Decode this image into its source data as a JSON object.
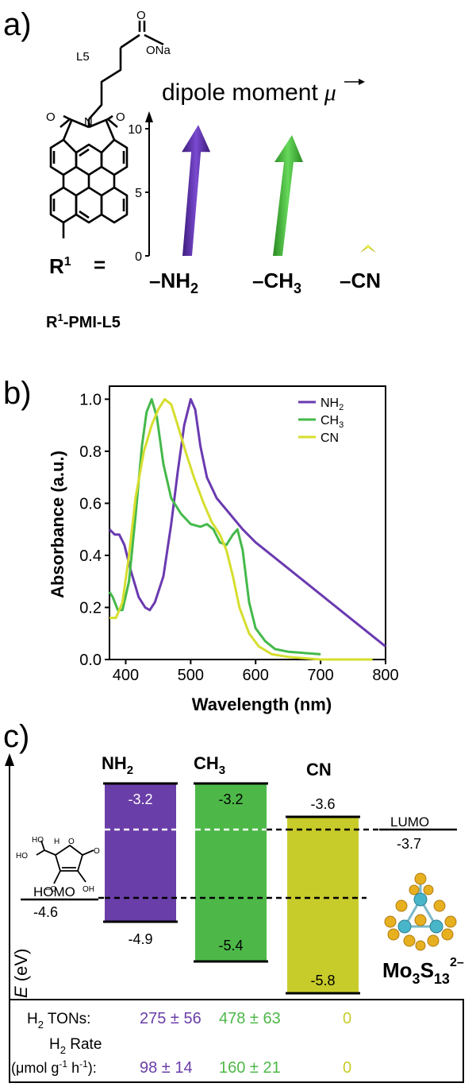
{
  "panel_a": {
    "label": "a)",
    "dipole_title": "dipole moment",
    "dipole_symbol": "μ",
    "linker_label": "L5",
    "carboxylate_label": "ONa",
    "oxygen_label": "O",
    "nitrogen_label": "N",
    "r_label": "R",
    "r_superscript": "1",
    "equals": "=",
    "molecule_name_pre": "R",
    "molecule_name_sup": "1",
    "molecule_name_post": "-PMI-L5",
    "yticks": [
      "0",
      "5",
      "10"
    ],
    "ylim": [
      0,
      11
    ],
    "colors": {
      "NH2": "#6030a8",
      "CH3": "#3fb83a",
      "CN": "#d8dc28"
    },
    "chart_data": {
      "type": "bar",
      "categories": [
        "–NH2",
        "–CH3",
        "–CN"
      ],
      "values": [
        10.3,
        9.5,
        0.9
      ],
      "ylim": [
        0,
        11
      ]
    }
  },
  "panel_b": {
    "label": "b)",
    "xlabel": "Wavelength (nm)",
    "ylabel": "Absorbance (a.u.)",
    "legend": [
      "NH2",
      "CH3",
      "CN"
    ],
    "chart_data": {
      "type": "line",
      "xlim": [
        375,
        800
      ],
      "ylim": [
        0,
        1.05
      ],
      "xticks": [
        400,
        500,
        600,
        700,
        800
      ],
      "yticks": [
        "0.0",
        "0.2",
        "0.4",
        "0.6",
        "0.8",
        "1.0"
      ],
      "legend_position": "top-right",
      "series": [
        {
          "name": "NH2",
          "color": "#6a3ab0",
          "points": [
            [
              375,
              0.5
            ],
            [
              383,
              0.48
            ],
            [
              390,
              0.48
            ],
            [
              398,
              0.44
            ],
            [
              408,
              0.34
            ],
            [
              420,
              0.24
            ],
            [
              430,
              0.2
            ],
            [
              437,
              0.19
            ],
            [
              445,
              0.22
            ],
            [
              458,
              0.32
            ],
            [
              470,
              0.52
            ],
            [
              480,
              0.72
            ],
            [
              490,
              0.9
            ],
            [
              500,
              1.0
            ],
            [
              507,
              0.96
            ],
            [
              515,
              0.82
            ],
            [
              525,
              0.7
            ],
            [
              540,
              0.62
            ],
            [
              560,
              0.56
            ],
            [
              580,
              0.5
            ],
            [
              600,
              0.45
            ],
            [
              650,
              0.35
            ],
            [
              700,
              0.25
            ],
            [
              750,
              0.15
            ],
            [
              800,
              0.05
            ]
          ]
        },
        {
          "name": "CH3",
          "color": "#44b94a",
          "points": [
            [
              375,
              0.26
            ],
            [
              380,
              0.24
            ],
            [
              388,
              0.19
            ],
            [
              395,
              0.19
            ],
            [
              405,
              0.3
            ],
            [
              415,
              0.55
            ],
            [
              425,
              0.82
            ],
            [
              432,
              0.95
            ],
            [
              440,
              1.0
            ],
            [
              448,
              0.93
            ],
            [
              458,
              0.75
            ],
            [
              470,
              0.62
            ],
            [
              485,
              0.56
            ],
            [
              500,
              0.52
            ],
            [
              515,
              0.51
            ],
            [
              525,
              0.52
            ],
            [
              535,
              0.5
            ],
            [
              545,
              0.45
            ],
            [
              555,
              0.44
            ],
            [
              565,
              0.48
            ],
            [
              572,
              0.5
            ],
            [
              580,
              0.42
            ],
            [
              590,
              0.22
            ],
            [
              600,
              0.12
            ],
            [
              615,
              0.07
            ],
            [
              630,
              0.04
            ],
            [
              650,
              0.03
            ],
            [
              700,
              0.02
            ]
          ]
        },
        {
          "name": "CN",
          "color": "#d6de2e",
          "points": [
            [
              375,
              0.16
            ],
            [
              385,
              0.16
            ],
            [
              395,
              0.22
            ],
            [
              405,
              0.4
            ],
            [
              415,
              0.62
            ],
            [
              428,
              0.8
            ],
            [
              440,
              0.9
            ],
            [
              450,
              0.96
            ],
            [
              460,
              1.0
            ],
            [
              470,
              0.98
            ],
            [
              480,
              0.9
            ],
            [
              492,
              0.8
            ],
            [
              505,
              0.7
            ],
            [
              520,
              0.6
            ],
            [
              532,
              0.53
            ],
            [
              545,
              0.48
            ],
            [
              555,
              0.42
            ],
            [
              565,
              0.32
            ],
            [
              575,
              0.2
            ],
            [
              590,
              0.1
            ],
            [
              605,
              0.05
            ],
            [
              625,
              0.02
            ],
            [
              650,
              0.01
            ],
            [
              700,
              0.0
            ],
            [
              780,
              0.0
            ]
          ]
        }
      ]
    }
  },
  "panel_c": {
    "label": "c)",
    "yaxis_italic": "E",
    "yaxis_unit": " (eV)",
    "columns": [
      {
        "name_main": "NH",
        "name_sub": "2",
        "lumo": "-3.2",
        "homo": "-4.9",
        "color": "#6a3ea8"
      },
      {
        "name_main": "CH",
        "name_sub": "3",
        "lumo": "-3.2",
        "homo": "-5.4",
        "color": "#4db848"
      },
      {
        "name_main": "CN",
        "name_sub": "",
        "lumo": "-3.6",
        "homo": "-5.8",
        "color": "#c8cc2a"
      }
    ],
    "donor": {
      "label": "HOMO",
      "value": "-4.6",
      "oh_label": "OH",
      "ho_label": "HO",
      "om_label": "–O",
      "o_label": "O",
      "h_label": "H"
    },
    "catalyst": {
      "label": "LUMO",
      "value": "-3.7",
      "name_main": "Mo",
      "name_sub1": "3",
      "name_mid": "S",
      "name_sub2": "13",
      "name_sup": "2–"
    },
    "table": {
      "row1_label_pre": "H",
      "row1_label_sub": "2",
      "row1_label_post": " TONs:",
      "row2_label_pre": "H",
      "row2_label_sub": "2",
      "row2_label_post": " Rate",
      "row3_label": "(μmol g",
      "row3_sup1": "-1",
      "row3_mid": " h",
      "row3_sup2": "-1",
      "row3_end": "):",
      "tons": [
        "275 ± 56",
        "478 ± 63",
        "0"
      ],
      "rates": [
        "98 ± 14",
        "160 ± 21",
        "0"
      ]
    }
  }
}
